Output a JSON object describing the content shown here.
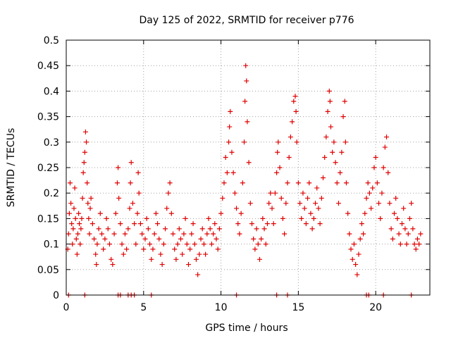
{
  "chart_data": {
    "type": "scatter",
    "title": "Day 125 of 2022, SRMTID for receiver p776",
    "xlabel": "GPS time / hours",
    "ylabel": "SRMTID / TECUs",
    "xlim": [
      0,
      23.5
    ],
    "ylim": [
      0,
      0.5
    ],
    "xticks": [
      0,
      5,
      10,
      15,
      20
    ],
    "xtick_labels": [
      "0",
      "5",
      "10",
      "15",
      "20"
    ],
    "yticks": [
      0,
      0.05,
      0.1,
      0.15,
      0.2,
      0.25,
      0.3,
      0.35,
      0.4,
      0.45,
      0.5
    ],
    "ytick_labels": [
      "0",
      "0.05",
      "0.1",
      "0.15",
      "0.2",
      "0.25",
      "0.3",
      "0.35",
      "0.4",
      "0.45",
      "0.5"
    ],
    "grid": true,
    "marker": "plus",
    "color": "#e00000",
    "series": [
      {
        "name": "SRMTID",
        "points": [
          [
            0.1,
            0.09
          ],
          [
            0.15,
            0.12
          ],
          [
            0.2,
            0.16
          ],
          [
            0.25,
            0.22
          ],
          [
            0.3,
            0.18
          ],
          [
            0.35,
            0.14
          ],
          [
            0.4,
            0.1
          ],
          [
            0.45,
            0.13
          ],
          [
            0.5,
            0.17
          ],
          [
            0.55,
            0.21
          ],
          [
            0.6,
            0.15
          ],
          [
            0.65,
            0.11
          ],
          [
            0.7,
            0.08
          ],
          [
            0.75,
            0.12
          ],
          [
            0.8,
            0.16
          ],
          [
            0.85,
            0.14
          ],
          [
            0.9,
            0.1
          ],
          [
            0.95,
            0.13
          ],
          [
            1.0,
            0.15
          ],
          [
            1.05,
            0.19
          ],
          [
            1.1,
            0.24
          ],
          [
            1.15,
            0.26
          ],
          [
            1.2,
            0.28
          ],
          [
            1.25,
            0.32
          ],
          [
            1.3,
            0.3
          ],
          [
            1.35,
            0.22
          ],
          [
            1.4,
            0.18
          ],
          [
            1.45,
            0.15
          ],
          [
            1.5,
            0.12
          ],
          [
            1.55,
            0.17
          ],
          [
            1.6,
            0.19
          ],
          [
            1.7,
            0.14
          ],
          [
            1.8,
            0.11
          ],
          [
            1.9,
            0.08
          ],
          [
            1.95,
            0.06
          ],
          [
            2.0,
            0.1
          ],
          [
            2.1,
            0.13
          ],
          [
            2.2,
            0.16
          ],
          [
            2.3,
            0.12
          ],
          [
            2.4,
            0.09
          ],
          [
            2.5,
            0.11
          ],
          [
            2.6,
            0.15
          ],
          [
            2.7,
            0.13
          ],
          [
            2.8,
            0.1
          ],
          [
            2.9,
            0.07
          ],
          [
            3.0,
            0.06
          ],
          [
            3.1,
            0.12
          ],
          [
            3.2,
            0.16
          ],
          [
            3.3,
            0.22
          ],
          [
            3.35,
            0.25
          ],
          [
            3.4,
            0.19
          ],
          [
            3.5,
            0.14
          ],
          [
            3.6,
            0.1
          ],
          [
            3.7,
            0.08
          ],
          [
            3.8,
            0.12
          ],
          [
            3.9,
            0.09
          ],
          [
            4.0,
            0.13
          ],
          [
            4.1,
            0.17
          ],
          [
            4.15,
            0.22
          ],
          [
            4.2,
            0.26
          ],
          [
            4.3,
            0.18
          ],
          [
            4.4,
            0.14
          ],
          [
            4.5,
            0.1
          ],
          [
            4.6,
            0.16
          ],
          [
            4.65,
            0.24
          ],
          [
            4.7,
            0.2
          ],
          [
            4.8,
            0.14
          ],
          [
            4.9,
            0.12
          ],
          [
            5.0,
            0.09
          ],
          [
            5.1,
            0.11
          ],
          [
            5.2,
            0.15
          ],
          [
            5.3,
            0.13
          ],
          [
            5.4,
            0.1
          ],
          [
            5.5,
            0.07
          ],
          [
            5.6,
            0.09
          ],
          [
            5.7,
            0.12
          ],
          [
            5.8,
            0.16
          ],
          [
            5.9,
            0.14
          ],
          [
            6.0,
            0.11
          ],
          [
            6.1,
            0.08
          ],
          [
            6.2,
            0.06
          ],
          [
            6.3,
            0.1
          ],
          [
            6.4,
            0.13
          ],
          [
            6.5,
            0.17
          ],
          [
            6.6,
            0.2
          ],
          [
            6.7,
            0.22
          ],
          [
            6.8,
            0.16
          ],
          [
            6.9,
            0.12
          ],
          [
            7.0,
            0.09
          ],
          [
            7.1,
            0.07
          ],
          [
            7.2,
            0.1
          ],
          [
            7.3,
            0.13
          ],
          [
            7.4,
            0.11
          ],
          [
            7.5,
            0.08
          ],
          [
            7.6,
            0.12
          ],
          [
            7.7,
            0.15
          ],
          [
            7.8,
            0.1
          ],
          [
            7.9,
            0.06
          ],
          [
            8.0,
            0.09
          ],
          [
            8.1,
            0.12
          ],
          [
            8.2,
            0.14
          ],
          [
            8.3,
            0.1
          ],
          [
            8.4,
            0.07
          ],
          [
            8.5,
            0.04
          ],
          [
            8.6,
            0.08
          ],
          [
            8.7,
            0.11
          ],
          [
            8.8,
            0.13
          ],
          [
            8.9,
            0.1
          ],
          [
            9.0,
            0.08
          ],
          [
            9.1,
            0.12
          ],
          [
            9.2,
            0.15
          ],
          [
            9.3,
            0.13
          ],
          [
            9.4,
            0.1
          ],
          [
            9.5,
            0.12
          ],
          [
            9.6,
            0.14
          ],
          [
            9.7,
            0.11
          ],
          [
            9.8,
            0.09
          ],
          [
            9.9,
            0.13
          ],
          [
            10.0,
            0.16
          ],
          [
            10.1,
            0.19
          ],
          [
            10.2,
            0.22
          ],
          [
            10.3,
            0.27
          ],
          [
            10.4,
            0.24
          ],
          [
            10.5,
            0.3
          ],
          [
            10.55,
            0.33
          ],
          [
            10.6,
            0.36
          ],
          [
            10.7,
            0.28
          ],
          [
            10.8,
            0.24
          ],
          [
            10.9,
            0.2
          ],
          [
            11.0,
            0.17
          ],
          [
            11.1,
            0.14
          ],
          [
            11.2,
            0.12
          ],
          [
            11.3,
            0.16
          ],
          [
            11.4,
            0.22
          ],
          [
            11.5,
            0.3
          ],
          [
            11.55,
            0.38
          ],
          [
            11.6,
            0.45
          ],
          [
            11.65,
            0.42
          ],
          [
            11.7,
            0.34
          ],
          [
            11.8,
            0.26
          ],
          [
            11.9,
            0.18
          ],
          [
            12.0,
            0.14
          ],
          [
            12.1,
            0.11
          ],
          [
            12.2,
            0.09
          ],
          [
            12.3,
            0.13
          ],
          [
            12.4,
            0.1
          ],
          [
            12.5,
            0.07
          ],
          [
            12.6,
            0.11
          ],
          [
            12.7,
            0.15
          ],
          [
            12.8,
            0.13
          ],
          [
            12.9,
            0.1
          ],
          [
            13.0,
            0.14
          ],
          [
            13.1,
            0.18
          ],
          [
            13.2,
            0.2
          ],
          [
            13.3,
            0.17
          ],
          [
            13.4,
            0.14
          ],
          [
            13.5,
            0.2
          ],
          [
            13.6,
            0.24
          ],
          [
            13.65,
            0.28
          ],
          [
            13.7,
            0.3
          ],
          [
            13.8,
            0.25
          ],
          [
            13.9,
            0.19
          ],
          [
            14.0,
            0.15
          ],
          [
            14.1,
            0.12
          ],
          [
            14.2,
            0.18
          ],
          [
            14.3,
            0.22
          ],
          [
            14.4,
            0.27
          ],
          [
            14.5,
            0.31
          ],
          [
            14.6,
            0.34
          ],
          [
            14.7,
            0.38
          ],
          [
            14.8,
            0.39
          ],
          [
            14.85,
            0.36
          ],
          [
            14.9,
            0.3
          ],
          [
            15.0,
            0.22
          ],
          [
            15.1,
            0.18
          ],
          [
            15.2,
            0.15
          ],
          [
            15.3,
            0.2
          ],
          [
            15.4,
            0.17
          ],
          [
            15.5,
            0.14
          ],
          [
            15.6,
            0.19
          ],
          [
            15.7,
            0.22
          ],
          [
            15.8,
            0.16
          ],
          [
            15.9,
            0.13
          ],
          [
            16.0,
            0.15
          ],
          [
            16.1,
            0.18
          ],
          [
            16.2,
            0.21
          ],
          [
            16.3,
            0.17
          ],
          [
            16.4,
            0.14
          ],
          [
            16.5,
            0.19
          ],
          [
            16.6,
            0.23
          ],
          [
            16.7,
            0.27
          ],
          [
            16.8,
            0.31
          ],
          [
            16.9,
            0.36
          ],
          [
            17.0,
            0.4
          ],
          [
            17.05,
            0.38
          ],
          [
            17.1,
            0.33
          ],
          [
            17.2,
            0.28
          ],
          [
            17.3,
            0.3
          ],
          [
            17.4,
            0.26
          ],
          [
            17.5,
            0.22
          ],
          [
            17.6,
            0.18
          ],
          [
            17.7,
            0.24
          ],
          [
            17.8,
            0.28
          ],
          [
            17.9,
            0.35
          ],
          [
            18.0,
            0.38
          ],
          [
            18.05,
            0.3
          ],
          [
            18.1,
            0.22
          ],
          [
            18.2,
            0.16
          ],
          [
            18.3,
            0.12
          ],
          [
            18.4,
            0.09
          ],
          [
            18.5,
            0.07
          ],
          [
            18.6,
            0.1
          ],
          [
            18.7,
            0.06
          ],
          [
            18.8,
            0.04
          ],
          [
            18.9,
            0.08
          ],
          [
            19.0,
            0.11
          ],
          [
            19.1,
            0.14
          ],
          [
            19.2,
            0.12
          ],
          [
            19.3,
            0.16
          ],
          [
            19.4,
            0.19
          ],
          [
            19.5,
            0.22
          ],
          [
            19.6,
            0.2
          ],
          [
            19.7,
            0.17
          ],
          [
            19.8,
            0.21
          ],
          [
            19.9,
            0.25
          ],
          [
            20.0,
            0.27
          ],
          [
            20.1,
            0.22
          ],
          [
            20.2,
            0.18
          ],
          [
            20.3,
            0.15
          ],
          [
            20.4,
            0.2
          ],
          [
            20.5,
            0.25
          ],
          [
            20.6,
            0.29
          ],
          [
            20.7,
            0.31
          ],
          [
            20.8,
            0.24
          ],
          [
            20.9,
            0.18
          ],
          [
            21.0,
            0.13
          ],
          [
            21.1,
            0.11
          ],
          [
            21.2,
            0.16
          ],
          [
            21.3,
            0.19
          ],
          [
            21.4,
            0.15
          ],
          [
            21.5,
            0.12
          ],
          [
            21.6,
            0.1
          ],
          [
            21.7,
            0.14
          ],
          [
            21.8,
            0.17
          ],
          [
            21.9,
            0.13
          ],
          [
            22.0,
            0.1
          ],
          [
            22.1,
            0.12
          ],
          [
            22.2,
            0.15
          ],
          [
            22.3,
            0.18
          ],
          [
            22.4,
            0.13
          ],
          [
            22.5,
            0.1
          ],
          [
            22.6,
            0.09
          ],
          [
            22.7,
            0.11
          ],
          [
            22.8,
            0.1
          ],
          [
            22.9,
            0.12
          ],
          [
            0.15,
            0.0
          ],
          [
            1.2,
            0.0
          ],
          [
            3.35,
            0.0
          ],
          [
            3.5,
            0.0
          ],
          [
            4.0,
            0.0
          ],
          [
            4.2,
            0.0
          ],
          [
            4.4,
            0.0
          ],
          [
            5.5,
            0.0
          ],
          [
            11.0,
            0.0
          ],
          [
            13.6,
            0.0
          ],
          [
            14.3,
            0.0
          ],
          [
            19.4,
            0.0
          ],
          [
            19.55,
            0.0
          ],
          [
            20.5,
            0.0
          ],
          [
            22.3,
            0.0
          ]
        ]
      }
    ]
  }
}
